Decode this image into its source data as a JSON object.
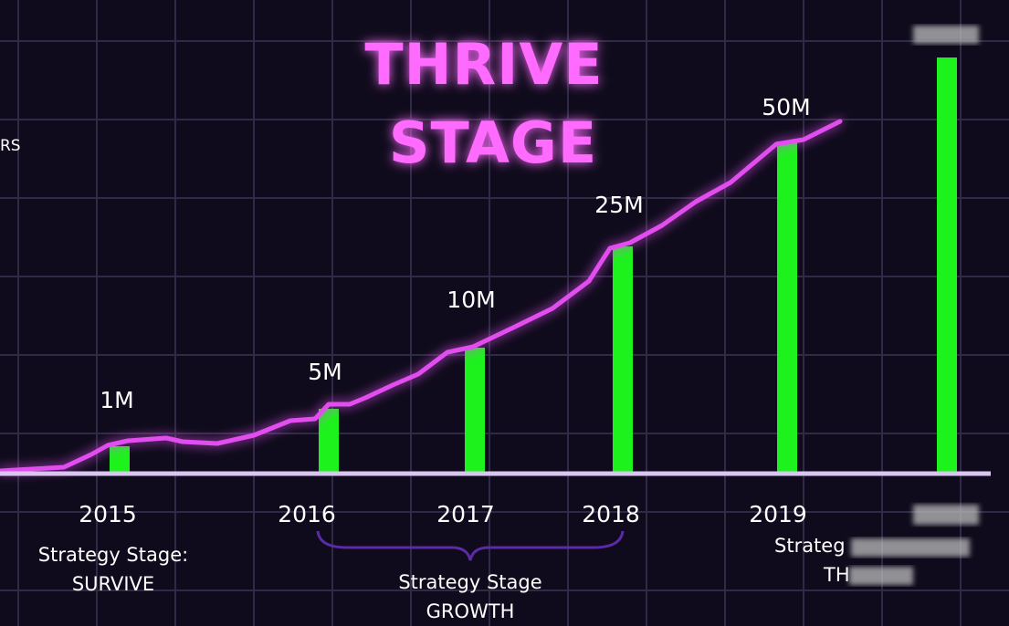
{
  "title": [
    "THRIVE",
    "STAGE"
  ],
  "edge_left_text": "RS",
  "colors": {
    "background": "#0f0b1c",
    "grid": "#2f2a45",
    "title": "#ff6bff",
    "line": "#e24df0",
    "bar": "#1df21d",
    "baseline": "#d9c6f0",
    "brace": "#5b2aa6"
  },
  "chart_data": {
    "type": "bar",
    "categories": [
      "2015",
      "2016",
      "2017",
      "2018",
      "2019",
      ""
    ],
    "values": [
      1,
      5,
      10,
      25,
      50,
      null
    ],
    "value_labels": [
      "1M",
      "5M",
      "10M",
      "25M",
      "50M",
      ""
    ],
    "overlay_line": {
      "type": "line",
      "series": "growth curve"
    },
    "grid": true
  },
  "stages": {
    "survive": [
      "Strategy Stage:",
      "SURVIVE"
    ],
    "growth": [
      "Strategy Stage",
      "GROWTH"
    ],
    "thrive_partial": [
      "Strateg",
      "TH"
    ]
  }
}
